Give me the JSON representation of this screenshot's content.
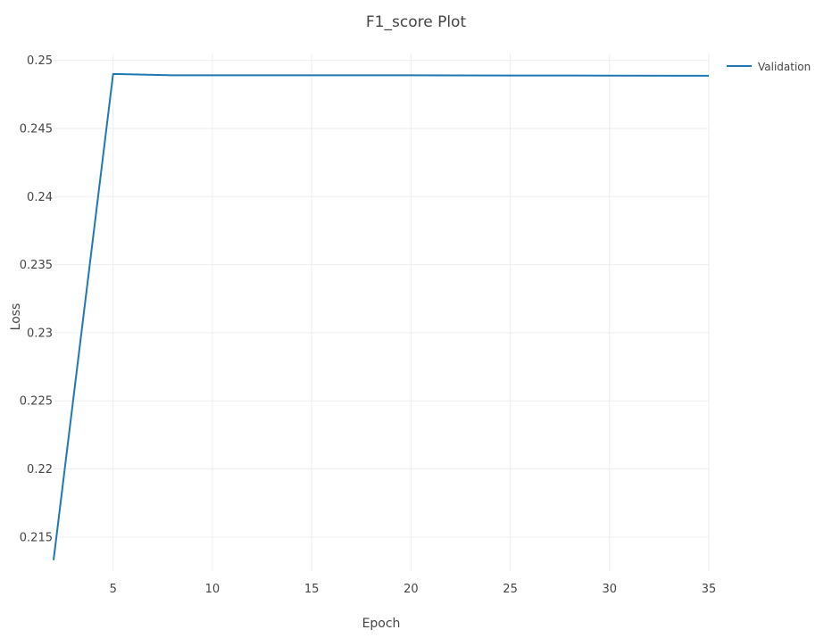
{
  "chart_data": {
    "type": "line",
    "title": "F1_score Plot",
    "xlabel": "Epoch",
    "ylabel": "Loss",
    "xlim": [
      2,
      35
    ],
    "ylim": [
      0.2125,
      0.2505
    ],
    "x_ticks": [
      5,
      10,
      15,
      20,
      25,
      30,
      35
    ],
    "x_tick_labels": [
      "5",
      "10",
      "15",
      "20",
      "25",
      "30",
      "35"
    ],
    "y_ticks": [
      0.215,
      0.22,
      0.225,
      0.23,
      0.235,
      0.24,
      0.245,
      0.25
    ],
    "y_tick_labels": [
      "0.215",
      "0.22",
      "0.225",
      "0.23",
      "0.235",
      "0.24",
      "0.245",
      "0.25"
    ],
    "grid": true,
    "legend_position": "top-right",
    "series": [
      {
        "name": "Validation",
        "color": "#1f77b4",
        "x": [
          2,
          5,
          8,
          15,
          20,
          25,
          30,
          35
        ],
        "y": [
          0.2133,
          0.249,
          0.2489,
          0.2489,
          0.2489,
          0.24889,
          0.24888,
          0.24887
        ]
      }
    ]
  }
}
